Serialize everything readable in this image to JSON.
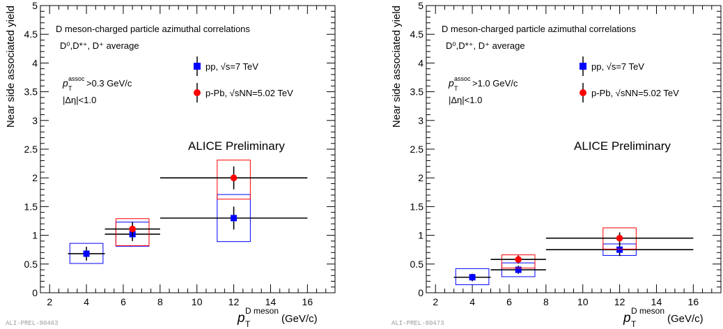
{
  "chart_data": [
    {
      "type": "scatter",
      "title": "D meson-charged particle azimuthal correlations",
      "subtitle": "D⁰,D*⁺, D⁺ average",
      "ylabel": "Near side associated yield",
      "xlabel_main": "p",
      "xlabel_sub": "T",
      "xlabel_sup": "D meson",
      "xlabel_unit": "(GeV/c)",
      "xlim": [
        1.5,
        17.5
      ],
      "ylim": [
        0,
        5
      ],
      "x_ticks": [
        "2",
        "4",
        "6",
        "8",
        "10",
        "12",
        "14",
        "16"
      ],
      "y_ticks": [
        "0",
        "0.5",
        "1",
        "1.5",
        "2",
        "2.5",
        "3",
        "3.5",
        "4",
        "4.5",
        "5"
      ],
      "cut_main": "p",
      "cut_sub": "T",
      "cut_sup": "assoc",
      "cut_text": ">0.3 GeV/c",
      "eta_cut": "|Δη|<1.0",
      "collaboration": "ALICE Preliminary",
      "watermark": "ALI-PREL-80463",
      "series": [
        {
          "name": "pp, √s=7 TeV",
          "color": "#0000ff",
          "marker": "square",
          "points": [
            {
              "x": 4,
              "y": 0.68,
              "xerr": [
                3,
                5
              ],
              "yerr": [
                0.56,
                0.8
              ],
              "sys": [
                0.51,
                0.86
              ]
            },
            {
              "x": 6.5,
              "y": 1.02,
              "xerr": [
                5,
                8
              ],
              "yerr": [
                0.9,
                1.14
              ],
              "sys": [
                0.81,
                1.23
              ]
            },
            {
              "x": 12,
              "y": 1.3,
              "xerr": [
                8,
                16
              ],
              "yerr": [
                1.1,
                1.5
              ],
              "sys": [
                0.89,
                1.71
              ]
            }
          ]
        },
        {
          "name": "p-Pb, √sNN=5.02 TeV",
          "color": "#ff0000",
          "marker": "circle",
          "points": [
            {
              "x": 6.5,
              "y": 1.11,
              "xerr": [
                5,
                8
              ],
              "yerr": [
                0.99,
                1.23
              ],
              "sys": [
                0.82,
                1.29
              ]
            },
            {
              "x": 12,
              "y": 2.0,
              "xerr": [
                8,
                16
              ],
              "yerr": [
                1.8,
                2.2
              ],
              "sys": [
                1.63,
                2.31
              ]
            }
          ]
        }
      ]
    },
    {
      "type": "scatter",
      "title": "D meson-charged particle azimuthal correlations",
      "subtitle": "D⁰,D*⁺, D⁺ average",
      "ylabel": "Near side associated yield",
      "xlabel_main": "p",
      "xlabel_sub": "T",
      "xlabel_sup": "D meson",
      "xlabel_unit": "(GeV/c)",
      "xlim": [
        1.5,
        17.5
      ],
      "ylim": [
        0,
        5
      ],
      "x_ticks": [
        "2",
        "4",
        "6",
        "8",
        "10",
        "12",
        "14",
        "16"
      ],
      "y_ticks": [
        "0",
        "0.5",
        "1",
        "1.5",
        "2",
        "2.5",
        "3",
        "3.5",
        "4",
        "4.5",
        "5"
      ],
      "cut_main": "p",
      "cut_sub": "T",
      "cut_sup": "assoc",
      "cut_text": ">1.0 GeV/c",
      "eta_cut": "|Δη|<1.0",
      "collaboration": "ALICE Preliminary",
      "watermark": "ALI-PREL-80473",
      "series": [
        {
          "name": "pp, √s=7 TeV",
          "color": "#0000ff",
          "marker": "square",
          "points": [
            {
              "x": 4,
              "y": 0.27,
              "xerr": [
                3,
                5
              ],
              "yerr": [
                0.2,
                0.33
              ],
              "sys": [
                0.14,
                0.42
              ]
            },
            {
              "x": 6.5,
              "y": 0.4,
              "xerr": [
                5,
                8
              ],
              "yerr": [
                0.33,
                0.47
              ],
              "sys": [
                0.28,
                0.52
              ]
            },
            {
              "x": 12,
              "y": 0.75,
              "xerr": [
                8,
                16
              ],
              "yerr": [
                0.64,
                0.87
              ],
              "sys": [
                0.65,
                0.85
              ]
            }
          ]
        },
        {
          "name": "p-Pb, √sNN=5.02 TeV",
          "color": "#ff0000",
          "marker": "circle",
          "points": [
            {
              "x": 6.5,
              "y": 0.58,
              "xerr": [
                5,
                8
              ],
              "yerr": [
                0.51,
                0.65
              ],
              "sys": [
                0.43,
                0.66
              ]
            },
            {
              "x": 12,
              "y": 0.95,
              "xerr": [
                8,
                16
              ],
              "yerr": [
                0.84,
                1.05
              ],
              "sys": [
                0.76,
                1.13
              ]
            }
          ]
        }
      ]
    }
  ]
}
